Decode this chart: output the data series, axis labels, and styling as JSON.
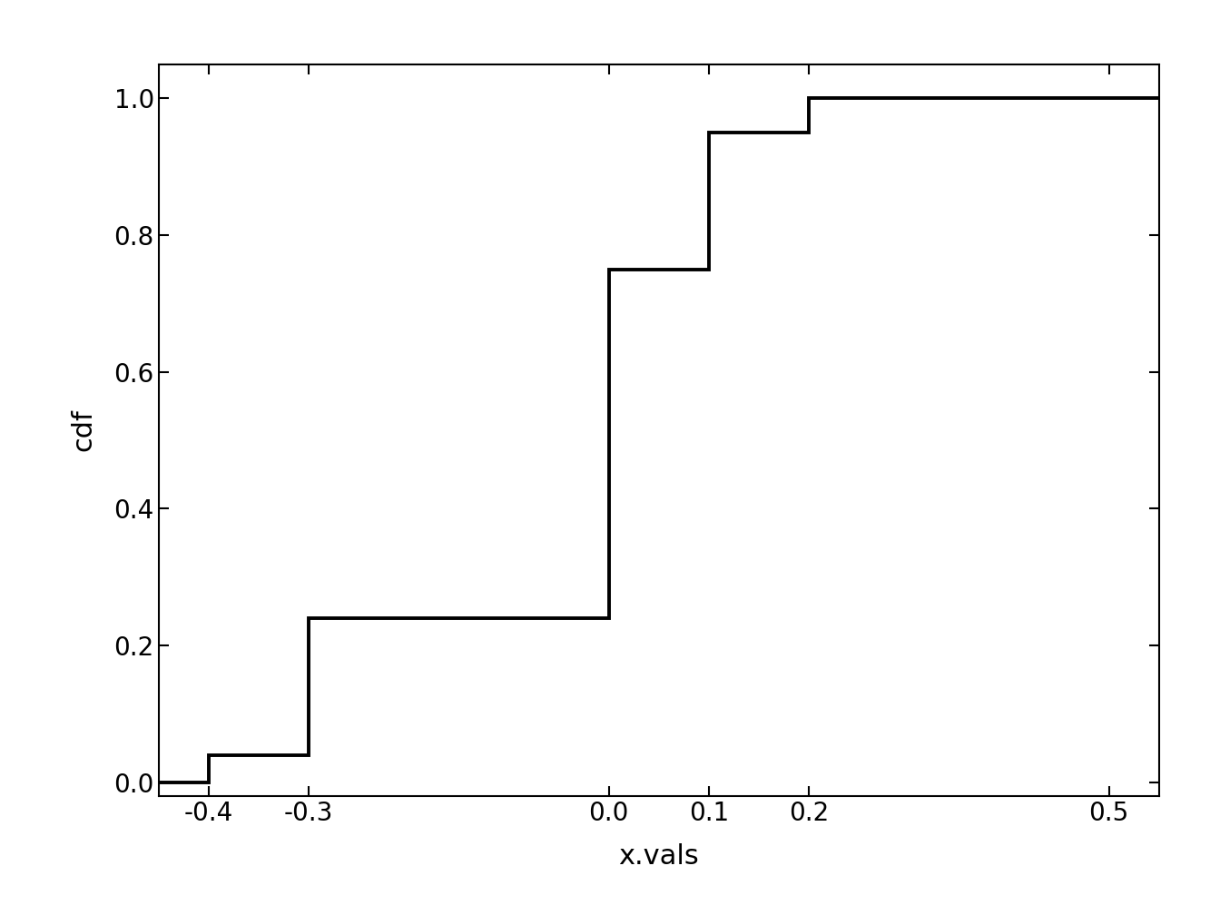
{
  "xlabel": "x.vals",
  "ylabel": "cdf",
  "xlim": [
    -0.45,
    0.55
  ],
  "ylim": [
    -0.02,
    1.05
  ],
  "xticks": [
    -0.4,
    -0.3,
    0.0,
    0.1,
    0.2,
    0.5
  ],
  "yticks": [
    0.0,
    0.2,
    0.4,
    0.6,
    0.8,
    1.0
  ],
  "step_x": [
    -0.45,
    -0.4,
    -0.4,
    -0.3,
    -0.3,
    0.0,
    0.0,
    0.1,
    0.1,
    0.2,
    0.2,
    0.55
  ],
  "step_y": [
    0.0,
    0.0,
    0.04,
    0.04,
    0.24,
    0.24,
    0.75,
    0.75,
    0.95,
    0.95,
    1.0,
    1.0
  ],
  "line_color": "#000000",
  "line_width": 2.8,
  "background_color": "#ffffff",
  "tick_label_fontsize": 20,
  "axis_label_fontsize": 22
}
